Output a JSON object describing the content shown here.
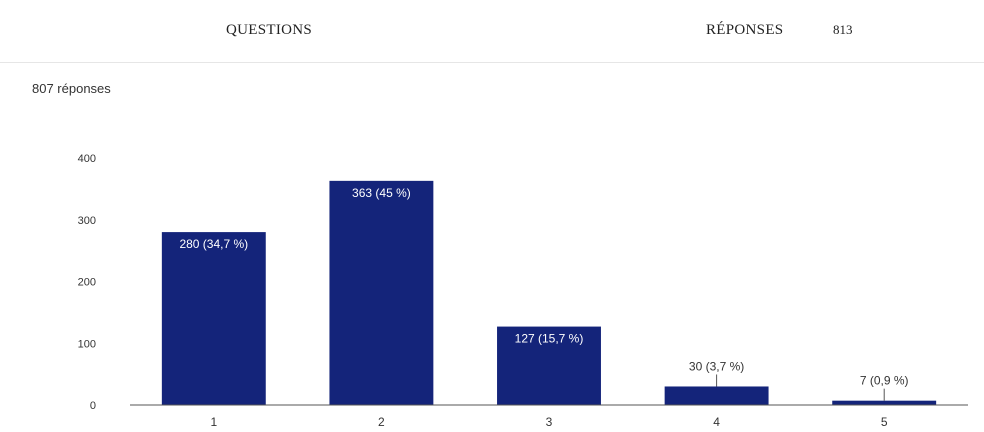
{
  "header": {
    "questions_label": "QUESTIONS",
    "responses_label": "RÉPONSES",
    "responses_count": "813"
  },
  "summary": "807 réponses",
  "colors": {
    "bar": "#14247a",
    "axis": "#555555"
  },
  "chart_data": {
    "type": "bar",
    "categories": [
      "1",
      "2",
      "3",
      "4",
      "5"
    ],
    "values": [
      280,
      363,
      127,
      30,
      7
    ],
    "data_labels": [
      "280 (34,7 %)",
      "363 (45 %)",
      "127 (15,7 %)",
      "30 (3,7 %)",
      "7 (0,9 %)"
    ],
    "yticks": [
      0,
      100,
      200,
      300,
      400
    ],
    "ylim": [
      0,
      400
    ],
    "title": "",
    "xlabel": "",
    "ylabel": "",
    "grid": false,
    "legend": "none"
  }
}
